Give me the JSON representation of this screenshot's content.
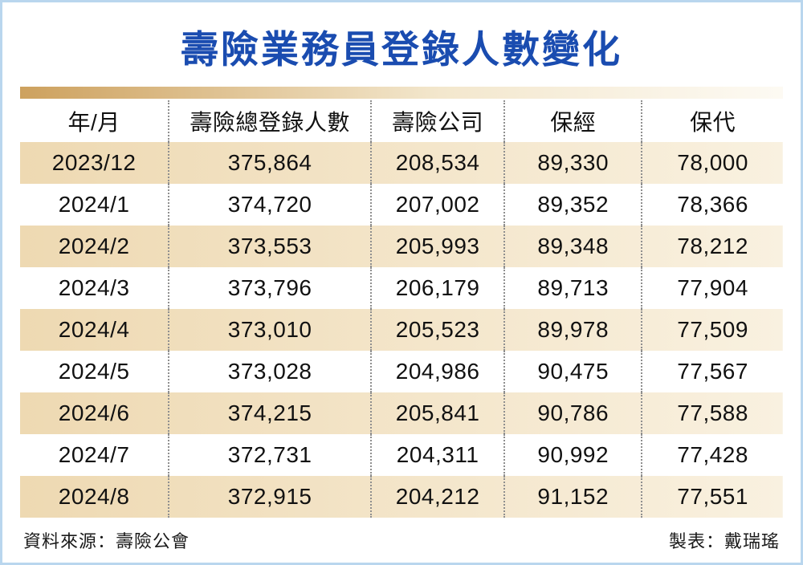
{
  "title": "壽險業務員登錄人數變化",
  "chart_data": {
    "type": "table",
    "title": "壽險業務員登錄人數變化",
    "columns": [
      "年/月",
      "壽險總登錄人數",
      "壽險公司",
      "保經",
      "保代"
    ],
    "rows": [
      [
        "2023/12",
        "375,864",
        "208,534",
        "89,330",
        "78,000"
      ],
      [
        "2024/1",
        "374,720",
        "207,002",
        "89,352",
        "78,366"
      ],
      [
        "2024/2",
        "373,553",
        "205,993",
        "89,348",
        "78,212"
      ],
      [
        "2024/3",
        "373,796",
        "206,179",
        "89,713",
        "77,904"
      ],
      [
        "2024/4",
        "373,010",
        "205,523",
        "89,978",
        "77,509"
      ],
      [
        "2024/5",
        "373,028",
        "204,986",
        "90,475",
        "77,567"
      ],
      [
        "2024/6",
        "374,215",
        "205,841",
        "90,786",
        "77,588"
      ],
      [
        "2024/7",
        "372,731",
        "204,311",
        "90,992",
        "77,428"
      ],
      [
        "2024/8",
        "372,915",
        "204,212",
        "91,152",
        "77,551"
      ]
    ],
    "layout": {
      "stripe_rows": "odd data rows shaded cream, header and even rows white",
      "column_separators": "gray dotted vertical lines",
      "legend": "none",
      "grid": "off"
    }
  },
  "footer": {
    "source": "資料來源：壽險公會",
    "credit": "製表：戴瑞瑤"
  },
  "colors": {
    "title_blue": "#1a4cb0",
    "stripe_left": "#eed9b2",
    "stripe_right": "#f9f1e0",
    "band_gold": "#cda15e",
    "frame_border": "#b9d6ee",
    "separator_dots": "#8f8f8f"
  }
}
